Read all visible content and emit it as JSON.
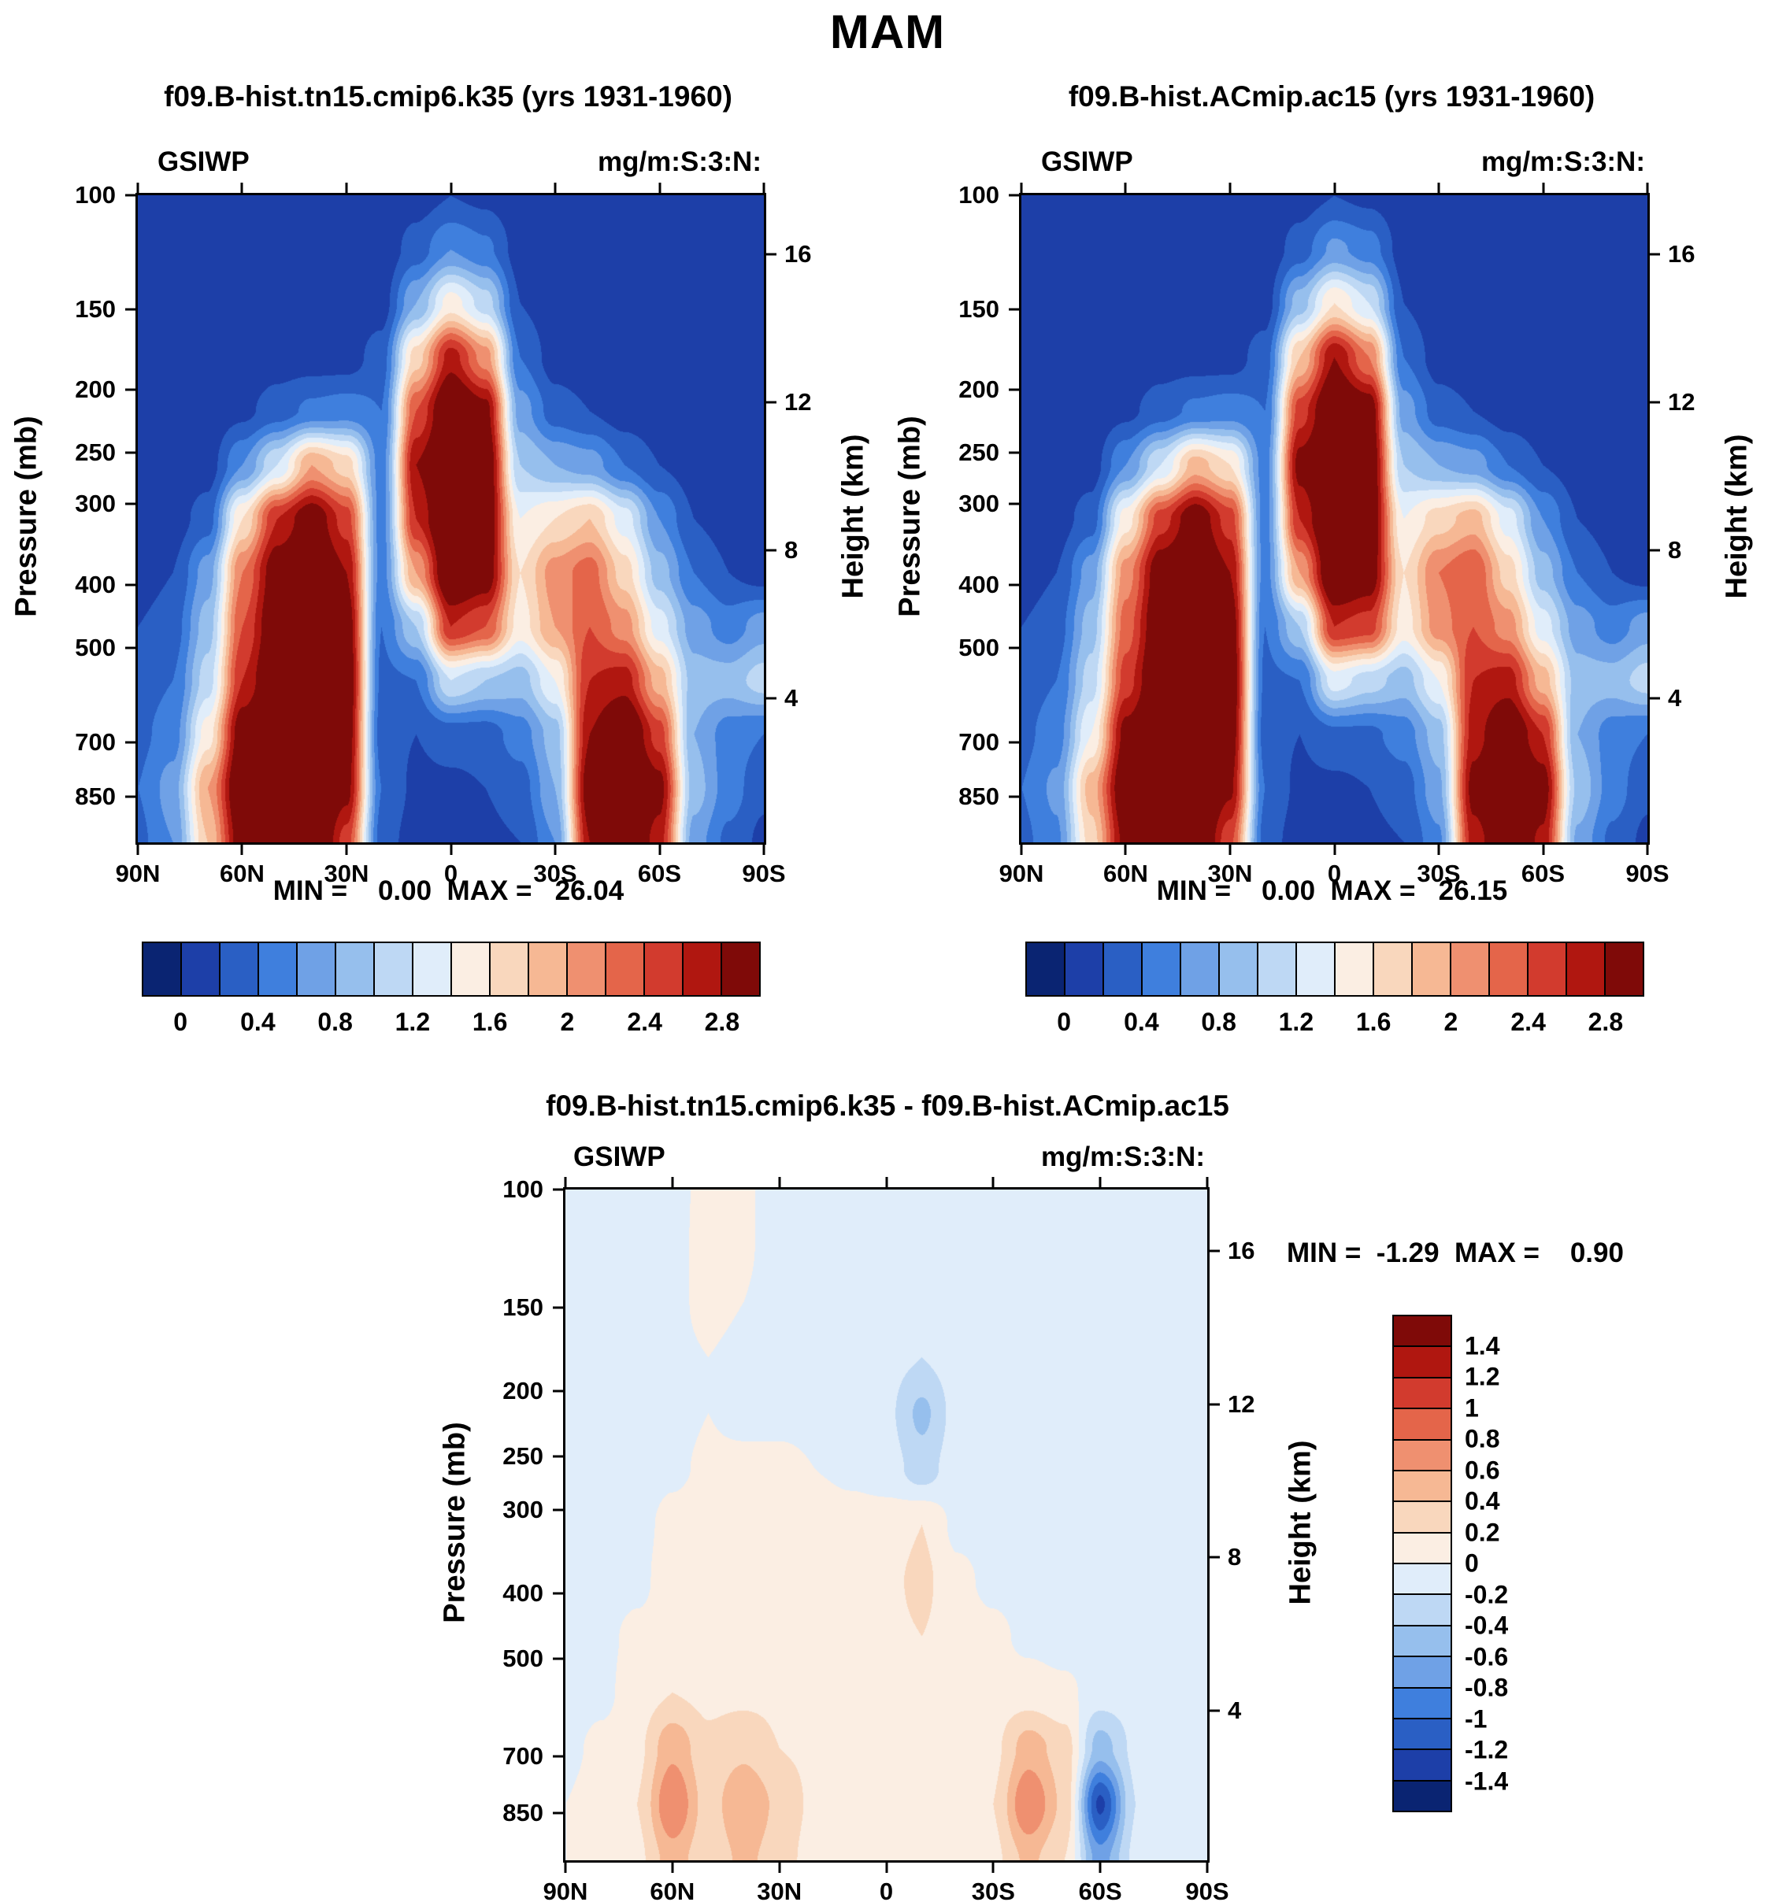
{
  "title": "MAM",
  "colorbar_16": [
    "#0a2472",
    "#1d3fa8",
    "#2a5fc4",
    "#3f7fdd",
    "#6fa1e6",
    "#96bfed",
    "#bed8f4",
    "#e0edfa",
    "#fbeee3",
    "#f9d7bd",
    "#f6b894",
    "#ef9070",
    "#e4654a",
    "#d23b2e",
    "#b01710",
    "#7f0a08"
  ],
  "chart_data": [
    {
      "type": "heatmap",
      "title": "f09.B-hist.tn15.cmip6.k35 (yrs 1931-1960)",
      "field_label": "GSIWP",
      "units_label": "mg/m:S:3:N:",
      "stats_label": "MIN =    0.00  MAX =   26.04",
      "x_tick_labels": [
        "90N",
        "60N",
        "30N",
        "0",
        "30S",
        "60S",
        "90S"
      ],
      "y_left_label": "Pressure (mb)",
      "pressure_ticks": [
        100,
        150,
        200,
        250,
        300,
        400,
        500,
        700,
        850
      ],
      "y_right_label": "Height (km)",
      "height_ticks_km": [
        16,
        12,
        8,
        4
      ],
      "y_axis": {
        "scale": "log",
        "top_mb": 100,
        "bottom_mb": 1000
      },
      "contour_levels": [
        0,
        0.2,
        0.4,
        0.6,
        0.8,
        1.0,
        1.2,
        1.4,
        1.6,
        1.8,
        2.0,
        2.2,
        2.4,
        2.6,
        2.8
      ],
      "colorbar_orientation": "horizontal",
      "colorbar_tick_labels": [
        "0",
        "0.4",
        "0.8",
        "1.2",
        "1.6",
        "2",
        "2.4",
        "2.8"
      ],
      "grid": {
        "lat_deg": [
          90,
          80,
          70,
          60,
          50,
          40,
          30,
          20,
          10,
          0,
          -10,
          -20,
          -30,
          -40,
          -50,
          -60,
          -70,
          -80,
          -90
        ],
        "pressure_mb": [
          100,
          121,
          147,
          178,
          215,
          261,
          316,
          383,
          464,
          562,
          681,
          825,
          1000
        ],
        "values": [
          [
            0.05,
            0.05,
            0.05,
            0.05,
            0.05,
            0.05,
            0.05,
            0.05,
            0.1,
            0.2,
            0.15,
            0.05,
            0.05,
            0.05,
            0.05,
            0.05,
            0.05,
            0.05,
            0.05
          ],
          [
            0.05,
            0.05,
            0.05,
            0.05,
            0.05,
            0.05,
            0.05,
            0.05,
            0.3,
            0.6,
            0.45,
            0.1,
            0.05,
            0.05,
            0.05,
            0.05,
            0.05,
            0.05,
            0.05
          ],
          [
            0.05,
            0.05,
            0.05,
            0.05,
            0.05,
            0.05,
            0.05,
            0.1,
            0.8,
            1.5,
            1.1,
            0.2,
            0.05,
            0.05,
            0.05,
            0.05,
            0.05,
            0.05,
            0.05
          ],
          [
            0.05,
            0.05,
            0.05,
            0.05,
            0.1,
            0.1,
            0.1,
            0.3,
            1.7,
            2.7,
            2.1,
            0.4,
            0.1,
            0.05,
            0.05,
            0.05,
            0.05,
            0.05,
            0.05
          ],
          [
            0.05,
            0.05,
            0.05,
            0.15,
            0.3,
            0.45,
            0.5,
            0.4,
            2.4,
            3.2,
            2.9,
            0.7,
            0.3,
            0.2,
            0.1,
            0.05,
            0.05,
            0.05,
            0.05
          ],
          [
            0.05,
            0.05,
            0.1,
            0.6,
            1.2,
            2.0,
            1.7,
            0.5,
            2.8,
            3.3,
            3.1,
            1.0,
            0.8,
            0.7,
            0.4,
            0.2,
            0.1,
            0.05,
            0.05
          ],
          [
            0.05,
            0.1,
            0.3,
            1.6,
            2.6,
            3.0,
            2.5,
            0.5,
            2.6,
            3.3,
            3.1,
            1.4,
            1.6,
            1.8,
            1.3,
            0.6,
            0.2,
            0.1,
            0.05
          ],
          [
            0.1,
            0.2,
            0.7,
            2.2,
            3.0,
            3.2,
            2.8,
            0.5,
            2.0,
            3.2,
            3.0,
            1.6,
            2.1,
            2.3,
            1.7,
            0.9,
            0.4,
            0.2,
            0.1
          ],
          [
            0.2,
            0.3,
            0.9,
            2.4,
            3.1,
            3.3,
            3.0,
            0.4,
            1.0,
            2.6,
            2.4,
            1.5,
            2.0,
            2.4,
            2.1,
            1.3,
            0.7,
            0.5,
            0.7
          ],
          [
            0.3,
            0.4,
            1.1,
            2.6,
            3.2,
            3.4,
            3.1,
            0.35,
            0.4,
            1.2,
            1.0,
            0.9,
            1.4,
            2.6,
            2.7,
            1.9,
            0.9,
            0.9,
            1.1
          ],
          [
            0.35,
            0.5,
            1.5,
            3.0,
            3.4,
            3.4,
            3.0,
            0.3,
            0.2,
            0.3,
            0.3,
            0.5,
            0.9,
            2.8,
            3.2,
            2.5,
            0.8,
            0.5,
            0.4
          ],
          [
            0.4,
            0.7,
            2.0,
            3.2,
            3.5,
            3.5,
            2.9,
            0.4,
            0.15,
            0.15,
            0.2,
            0.3,
            0.8,
            3.0,
            3.4,
            2.9,
            0.9,
            0.5,
            0.25
          ],
          [
            0.35,
            0.6,
            1.8,
            3.0,
            3.4,
            3.4,
            2.5,
            0.3,
            0.1,
            0.1,
            0.15,
            0.2,
            0.6,
            2.8,
            3.2,
            2.7,
            0.7,
            0.35,
            0.15
          ]
        ]
      }
    },
    {
      "type": "heatmap",
      "title": "f09.B-hist.ACmip.ac15 (yrs 1931-1960)",
      "field_label": "GSIWP",
      "units_label": "mg/m:S:3:N:",
      "stats_label": "MIN =    0.00  MAX =   26.15",
      "x_tick_labels": [
        "90N",
        "60N",
        "30N",
        "0",
        "30S",
        "60S",
        "90S"
      ],
      "y_left_label": "Pressure (mb)",
      "pressure_ticks": [
        100,
        150,
        200,
        250,
        300,
        400,
        500,
        700,
        850
      ],
      "y_right_label": "Height (km)",
      "height_ticks_km": [
        16,
        12,
        8,
        4
      ],
      "y_axis": {
        "scale": "log",
        "top_mb": 100,
        "bottom_mb": 1000
      },
      "contour_levels": [
        0,
        0.2,
        0.4,
        0.6,
        0.8,
        1.0,
        1.2,
        1.4,
        1.6,
        1.8,
        2.0,
        2.2,
        2.4,
        2.6,
        2.8
      ],
      "colorbar_orientation": "horizontal",
      "colorbar_tick_labels": [
        "0",
        "0.4",
        "0.8",
        "1.2",
        "1.6",
        "2",
        "2.4",
        "2.8"
      ],
      "grid": {
        "lat_deg": [
          90,
          80,
          70,
          60,
          50,
          40,
          30,
          20,
          10,
          0,
          -10,
          -20,
          -30,
          -40,
          -50,
          -60,
          -70,
          -80,
          -90
        ],
        "pressure_mb": [
          100,
          121,
          147,
          178,
          215,
          261,
          316,
          383,
          464,
          562,
          681,
          825,
          1000
        ],
        "values": [
          [
            0.05,
            0.05,
            0.05,
            0.05,
            0.05,
            0.05,
            0.05,
            0.05,
            0.1,
            0.2,
            0.15,
            0.05,
            0.05,
            0.05,
            0.05,
            0.05,
            0.05,
            0.05,
            0.05
          ],
          [
            0.05,
            0.05,
            0.05,
            0.05,
            0.05,
            0.05,
            0.05,
            0.05,
            0.3,
            0.65,
            0.5,
            0.1,
            0.05,
            0.05,
            0.05,
            0.05,
            0.05,
            0.05,
            0.05
          ],
          [
            0.05,
            0.05,
            0.05,
            0.05,
            0.05,
            0.05,
            0.05,
            0.1,
            0.9,
            1.6,
            1.2,
            0.2,
            0.05,
            0.05,
            0.05,
            0.05,
            0.05,
            0.05,
            0.05
          ],
          [
            0.05,
            0.05,
            0.05,
            0.05,
            0.1,
            0.1,
            0.1,
            0.3,
            1.8,
            2.8,
            2.2,
            0.4,
            0.1,
            0.05,
            0.05,
            0.05,
            0.05,
            0.05,
            0.05
          ],
          [
            0.05,
            0.05,
            0.05,
            0.15,
            0.3,
            0.45,
            0.5,
            0.4,
            2.5,
            3.2,
            3.0,
            0.7,
            0.3,
            0.2,
            0.1,
            0.05,
            0.05,
            0.05,
            0.05
          ],
          [
            0.05,
            0.05,
            0.1,
            0.6,
            1.2,
            1.9,
            1.6,
            0.5,
            2.9,
            3.3,
            3.1,
            1.0,
            0.8,
            0.7,
            0.4,
            0.2,
            0.1,
            0.05,
            0.05
          ],
          [
            0.05,
            0.1,
            0.3,
            1.5,
            2.5,
            3.0,
            2.5,
            0.5,
            2.6,
            3.3,
            3.1,
            1.4,
            1.7,
            1.9,
            1.3,
            0.6,
            0.2,
            0.1,
            0.05
          ],
          [
            0.1,
            0.2,
            0.7,
            2.1,
            3.0,
            3.2,
            2.8,
            0.5,
            2.0,
            3.2,
            3.0,
            1.6,
            2.2,
            2.4,
            1.7,
            0.9,
            0.4,
            0.2,
            0.1
          ],
          [
            0.2,
            0.3,
            0.9,
            2.3,
            3.1,
            3.3,
            3.0,
            0.4,
            1.0,
            2.6,
            2.5,
            1.5,
            2.1,
            2.4,
            2.1,
            1.3,
            0.7,
            0.5,
            0.7
          ],
          [
            0.3,
            0.4,
            1.1,
            2.5,
            3.2,
            3.3,
            3.1,
            0.35,
            0.4,
            1.3,
            1.1,
            0.9,
            1.4,
            2.6,
            2.7,
            1.9,
            0.9,
            0.9,
            1.1
          ],
          [
            0.35,
            0.5,
            1.4,
            2.9,
            3.3,
            3.3,
            3.0,
            0.3,
            0.2,
            0.35,
            0.35,
            0.5,
            0.9,
            2.7,
            3.1,
            2.6,
            0.8,
            0.5,
            0.4
          ],
          [
            0.4,
            0.65,
            1.9,
            3.1,
            3.4,
            3.4,
            2.85,
            0.4,
            0.15,
            0.15,
            0.2,
            0.3,
            0.75,
            2.9,
            3.3,
            2.95,
            0.95,
            0.5,
            0.25
          ],
          [
            0.35,
            0.55,
            1.7,
            2.9,
            3.3,
            3.3,
            2.45,
            0.3,
            0.1,
            0.1,
            0.15,
            0.2,
            0.55,
            2.7,
            3.1,
            2.75,
            0.75,
            0.35,
            0.15
          ]
        ]
      }
    },
    {
      "type": "heatmap",
      "title": "f09.B-hist.tn15.cmip6.k35 - f09.B-hist.ACmip.ac15",
      "field_label": "GSIWP",
      "units_label": "mg/m:S:3:N:",
      "stats_label": "MIN =  -1.29  MAX =    0.90",
      "x_tick_labels": [
        "90N",
        "60N",
        "30N",
        "0",
        "30S",
        "60S",
        "90S"
      ],
      "y_left_label": "Pressure (mb)",
      "pressure_ticks": [
        100,
        150,
        200,
        250,
        300,
        400,
        500,
        700,
        850
      ],
      "y_right_label": "Height (km)",
      "height_ticks_km": [
        16,
        12,
        8,
        4
      ],
      "y_axis": {
        "scale": "log",
        "top_mb": 100,
        "bottom_mb": 1000
      },
      "contour_levels": [
        -1.4,
        -1.2,
        -1.0,
        -0.8,
        -0.6,
        -0.4,
        -0.2,
        0,
        0.2,
        0.4,
        0.6,
        0.8,
        1.0,
        1.2,
        1.4
      ],
      "colorbar_orientation": "vertical",
      "colorbar_tick_labels": [
        "1.4",
        "1.2",
        "1",
        "0.8",
        "0.6",
        "0.4",
        "0.2",
        "0",
        "-0.2",
        "-0.4",
        "-0.6",
        "-0.8",
        "-1",
        "-1.2",
        "-1.4"
      ],
      "grid": {
        "lat_deg": [
          90,
          80,
          70,
          60,
          50,
          40,
          30,
          20,
          10,
          0,
          -10,
          -20,
          -30,
          -40,
          -50,
          -60,
          -70,
          -80,
          -90
        ],
        "pressure_mb": [
          100,
          121,
          147,
          178,
          215,
          261,
          316,
          383,
          464,
          562,
          681,
          825,
          1000
        ],
        "values": [
          [
            -0.1,
            -0.1,
            -0.1,
            -0.08,
            0.08,
            0.03,
            -0.1,
            -0.1,
            -0.1,
            -0.1,
            -0.1,
            -0.1,
            -0.1,
            -0.1,
            -0.1,
            -0.05,
            -0.1,
            -0.1,
            -0.1
          ],
          [
            -0.1,
            -0.1,
            -0.1,
            -0.08,
            0.1,
            0.03,
            -0.1,
            -0.1,
            -0.1,
            -0.1,
            -0.1,
            -0.1,
            -0.1,
            -0.1,
            -0.1,
            -0.05,
            -0.1,
            -0.1,
            -0.1
          ],
          [
            -0.1,
            -0.1,
            -0.1,
            -0.05,
            0.06,
            0,
            -0.1,
            -0.1,
            -0.1,
            -0.08,
            -0.1,
            -0.1,
            -0.1,
            -0.1,
            -0.1,
            -0.1,
            -0.1,
            -0.1,
            -0.1
          ],
          [
            -0.1,
            -0.1,
            -0.1,
            -0.05,
            0,
            -0.05,
            -0.08,
            -0.1,
            -0.08,
            -0.12,
            -0.2,
            -0.1,
            -0.1,
            -0.1,
            -0.1,
            -0.1,
            -0.1,
            -0.1,
            -0.1
          ],
          [
            -0.1,
            -0.1,
            -0.1,
            -0.05,
            0,
            -0.05,
            -0.05,
            -0.05,
            -0.08,
            -0.15,
            -0.45,
            -0.12,
            -0.1,
            -0.1,
            -0.1,
            -0.1,
            -0.1,
            -0.1,
            -0.1
          ],
          [
            -0.1,
            -0.1,
            -0.08,
            -0.03,
            0.03,
            0.05,
            0.05,
            0,
            -0.05,
            -0.1,
            -0.3,
            -0.08,
            -0.1,
            -0.1,
            -0.1,
            -0.1,
            -0.1,
            -0.1,
            -0.1
          ],
          [
            -0.1,
            -0.1,
            -0.05,
            0.05,
            0.1,
            0.15,
            0.15,
            0.15,
            0.1,
            0.1,
            0.2,
            -0.05,
            -0.08,
            -0.1,
            -0.1,
            -0.1,
            -0.1,
            -0.1,
            -0.1
          ],
          [
            -0.1,
            -0.1,
            -0.05,
            0.1,
            0.15,
            0.2,
            0.15,
            0.15,
            0.15,
            0.15,
            0.25,
            0.05,
            -0.05,
            -0.1,
            -0.1,
            -0.1,
            -0.1,
            -0.1,
            -0.1
          ],
          [
            -0.1,
            -0.05,
            0.05,
            0.1,
            0.15,
            0.2,
            0.2,
            0.15,
            0.15,
            0.15,
            0.2,
            0.1,
            0.05,
            -0.05,
            -0.1,
            -0.1,
            -0.1,
            -0.1,
            -0.1
          ],
          [
            -0.1,
            -0.05,
            0.1,
            0.2,
            0.15,
            0.15,
            0.15,
            0.15,
            0.15,
            0.15,
            0.15,
            0.15,
            0.1,
            0.1,
            0.05,
            -0.1,
            -0.1,
            -0.1,
            -0.1
          ],
          [
            -0.05,
            0.05,
            0.15,
            0.55,
            0.25,
            0.35,
            0.2,
            0.15,
            0.15,
            0.15,
            0.15,
            0.15,
            0.15,
            0.5,
            0.3,
            -0.5,
            -0.15,
            -0.1,
            -0.05
          ],
          [
            0,
            0.1,
            0.2,
            0.8,
            0.3,
            0.6,
            0.35,
            0.15,
            0.1,
            0.15,
            0.15,
            0.15,
            0.2,
            0.8,
            0.35,
            -1.25,
            -0.2,
            -0.1,
            0
          ],
          [
            0,
            0.1,
            0.15,
            0.5,
            0.25,
            0.45,
            0.3,
            0.1,
            0.05,
            0.1,
            0.1,
            0.1,
            0.15,
            0.45,
            0.2,
            -0.7,
            -0.15,
            -0.05,
            0
          ]
        ]
      }
    }
  ]
}
